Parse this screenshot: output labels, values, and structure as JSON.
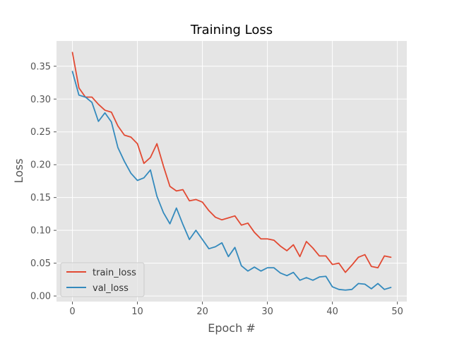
{
  "chart_data": {
    "type": "line",
    "title": "Training Loss",
    "xlabel": "Epoch #",
    "ylabel": "Loss",
    "xlim": [
      -2.45,
      51.45
    ],
    "ylim": [
      -0.0085,
      0.3885
    ],
    "xticks": [
      0,
      10,
      20,
      30,
      40,
      50
    ],
    "yticks": [
      0.0,
      0.05,
      0.1,
      0.15,
      0.2,
      0.25,
      0.3,
      0.35
    ],
    "ytick_labels": [
      "0.00",
      "0.05",
      "0.10",
      "0.15",
      "0.20",
      "0.25",
      "0.30",
      "0.35"
    ],
    "grid": true,
    "legend_position": "lower-left",
    "x": [
      0,
      1,
      2,
      3,
      4,
      5,
      6,
      7,
      8,
      9,
      10,
      11,
      12,
      13,
      14,
      15,
      16,
      17,
      18,
      19,
      20,
      21,
      22,
      23,
      24,
      25,
      26,
      27,
      28,
      29,
      30,
      31,
      32,
      33,
      34,
      35,
      36,
      37,
      38,
      39,
      40,
      41,
      42,
      43,
      44,
      45,
      46,
      47,
      48,
      49
    ],
    "series": [
      {
        "name": "train_loss",
        "color": "#E24A33",
        "values": [
          0.371,
          0.317,
          0.303,
          0.303,
          0.292,
          0.283,
          0.28,
          0.259,
          0.245,
          0.242,
          0.232,
          0.202,
          0.211,
          0.232,
          0.198,
          0.167,
          0.16,
          0.162,
          0.145,
          0.147,
          0.143,
          0.13,
          0.12,
          0.116,
          0.119,
          0.122,
          0.108,
          0.111,
          0.097,
          0.087,
          0.087,
          0.085,
          0.076,
          0.069,
          0.078,
          0.06,
          0.083,
          0.073,
          0.061,
          0.061,
          0.048,
          0.05,
          0.036,
          0.047,
          0.059,
          0.063,
          0.045,
          0.043,
          0.061,
          0.059
        ]
      },
      {
        "name": "val_loss",
        "color": "#348ABD",
        "values": [
          0.342,
          0.306,
          0.303,
          0.295,
          0.266,
          0.279,
          0.265,
          0.226,
          0.205,
          0.187,
          0.176,
          0.18,
          0.192,
          0.152,
          0.127,
          0.11,
          0.134,
          0.109,
          0.086,
          0.1,
          0.086,
          0.072,
          0.075,
          0.081,
          0.06,
          0.074,
          0.046,
          0.038,
          0.044,
          0.038,
          0.043,
          0.043,
          0.035,
          0.031,
          0.036,
          0.024,
          0.028,
          0.024,
          0.029,
          0.03,
          0.014,
          0.01,
          0.009,
          0.01,
          0.019,
          0.018,
          0.011,
          0.019,
          0.01,
          0.013
        ]
      }
    ]
  }
}
